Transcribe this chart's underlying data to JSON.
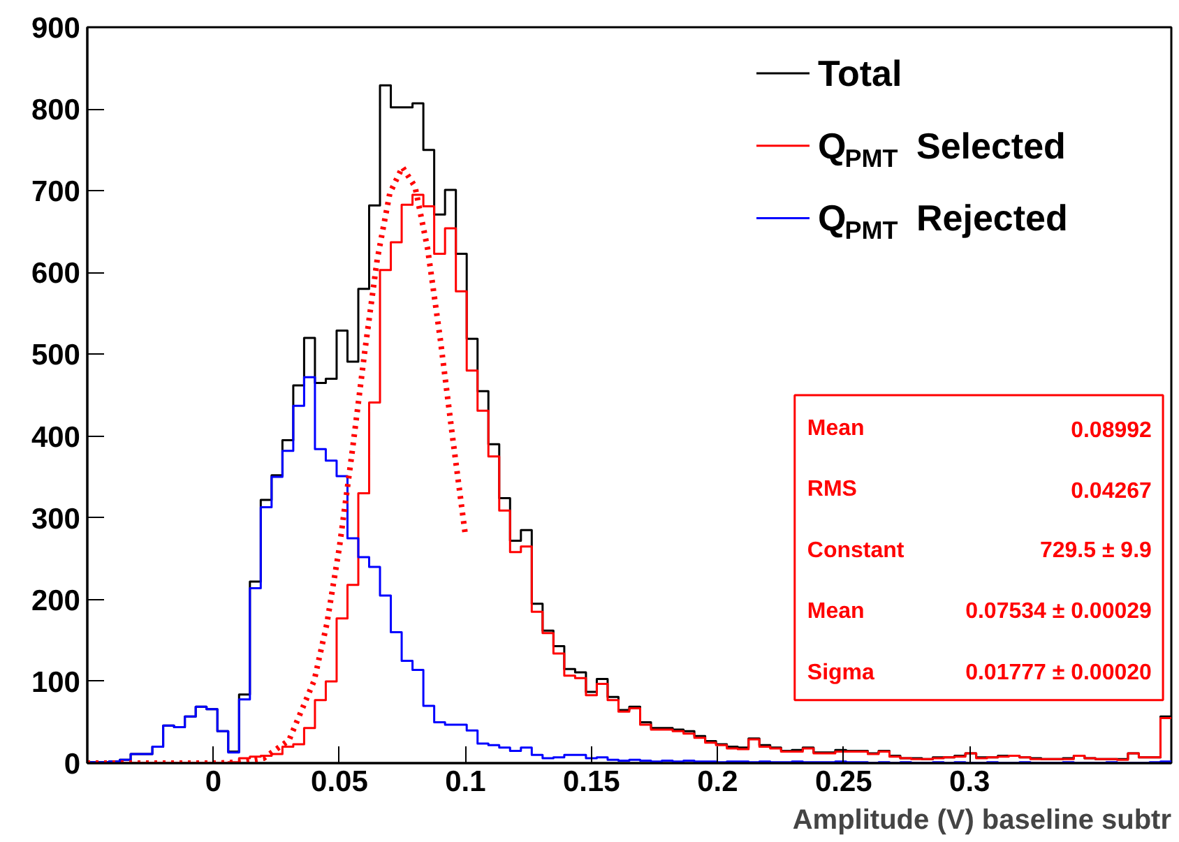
{
  "chart_data": {
    "type": "histogram",
    "xlabel": "Amplitude (V) baseline subtr",
    "bins": [
      -0.05,
      -0.0457,
      -0.0414,
      -0.0371,
      -0.0328,
      -0.0285,
      -0.0242,
      -0.0199,
      -0.0156,
      -0.0113,
      -0.007,
      -0.0027,
      0.0016,
      0.0059,
      0.0102,
      0.0145,
      0.0188,
      0.0231,
      0.0274,
      0.0317,
      0.036,
      0.0403,
      0.0446,
      0.0489,
      0.0532,
      0.0575,
      0.0618,
      0.0661,
      0.0704,
      0.0747,
      0.079,
      0.0833,
      0.0876,
      0.0919,
      0.0962,
      0.1005,
      0.1048,
      0.1091,
      0.1134,
      0.1177,
      0.122,
      0.1263,
      0.1306,
      0.1349,
      0.1392,
      0.1435,
      0.1478,
      0.1521,
      0.1564,
      0.1607,
      0.165,
      0.1693,
      0.1736,
      0.1779,
      0.1822,
      0.1865,
      0.1908,
      0.1951,
      0.1994,
      0.2037,
      0.208,
      0.2123,
      0.2166,
      0.2209,
      0.2252,
      0.2295,
      0.2338,
      0.2381,
      0.2424,
      0.2467,
      0.251,
      0.2553,
      0.2596,
      0.2639,
      0.2682,
      0.2725,
      0.2768,
      0.2811,
      0.2854,
      0.2897,
      0.294,
      0.2983,
      0.3026,
      0.3069,
      0.3112,
      0.3155,
      0.3198,
      0.3241,
      0.3284,
      0.3327,
      0.337,
      0.3413,
      0.3456,
      0.3499,
      0.3542,
      0.3585,
      0.3628,
      0.3671,
      0.3714,
      0.3757,
      0.38
    ],
    "xlim": [
      -0.05,
      0.38
    ],
    "xticks": [
      0,
      0.05,
      0.1,
      0.15,
      0.2,
      0.25,
      0.3
    ],
    "ylim": [
      0,
      900
    ],
    "yticks": [
      0,
      100,
      200,
      300,
      400,
      500,
      600,
      700,
      800,
      900
    ],
    "grid": false,
    "legend": "top right",
    "annotations": [
      "Mean",
      "0.08992",
      "RMS",
      "0.04267",
      "Constant",
      "729.5 ± 9.9",
      "Mean",
      "0.07534 ± 0.00029",
      "Sigma",
      "0.01777 ± 0.00020"
    ],
    "series": [
      {
        "name": "Total",
        "color": "#000000",
        "values": [
          1,
          1,
          2,
          4,
          11,
          11,
          20,
          46,
          44,
          57,
          69,
          66,
          39,
          14,
          84,
          222,
          322,
          352,
          395,
          462,
          520,
          465,
          470,
          529,
          491,
          580,
          682,
          829,
          802,
          802,
          807,
          750,
          671,
          701,
          623,
          519,
          455,
          390,
          324,
          272,
          285,
          195,
          162,
          143,
          115,
          111,
          87,
          103,
          81,
          65,
          69,
          50,
          43,
          43,
          41,
          39,
          33,
          27,
          23,
          20,
          19,
          30,
          22,
          19,
          15,
          16,
          19,
          13,
          13,
          16,
          15,
          15,
          12,
          15,
          9,
          6,
          6,
          5,
          7,
          7,
          9,
          12,
          7,
          7,
          9,
          9,
          7,
          6,
          5,
          5,
          6,
          9,
          6,
          5,
          5,
          5,
          12,
          7,
          7,
          57
        ]
      },
      {
        "name": "Q$_{PMT}$ Selected",
        "color": "#ff0000",
        "values": [
          0,
          0,
          0,
          0,
          0,
          0,
          0,
          0,
          0,
          0,
          0,
          0,
          0,
          1,
          6,
          8,
          9,
          11,
          20,
          23,
          43,
          77,
          100,
          177,
          218,
          330,
          441,
          603,
          637,
          683,
          695,
          681,
          623,
          654,
          577,
          480,
          431,
          375,
          309,
          258,
          265,
          185,
          159,
          134,
          107,
          104,
          83,
          97,
          77,
          63,
          67,
          47,
          41,
          41,
          39,
          36,
          31,
          25,
          22,
          18,
          17,
          29,
          20,
          18,
          14,
          14,
          18,
          12,
          12,
          14,
          14,
          14,
          11,
          14,
          8,
          6,
          5,
          5,
          6,
          7,
          8,
          12,
          6,
          7,
          8,
          9,
          7,
          5,
          5,
          5,
          5,
          9,
          6,
          5,
          5,
          4,
          12,
          7,
          7,
          55
        ]
      },
      {
        "name": "Q$_{PMT}$ Rejected",
        "color": "#0000ff",
        "values": [
          1,
          1,
          2,
          4,
          11,
          11,
          20,
          46,
          44,
          57,
          69,
          66,
          39,
          13,
          78,
          214,
          313,
          350,
          382,
          437,
          472,
          384,
          370,
          351,
          275,
          252,
          240,
          205,
          160,
          125,
          114,
          70,
          50,
          47,
          47,
          40,
          24,
          22,
          19,
          15,
          19,
          10,
          6,
          7,
          10,
          10,
          6,
          7,
          4,
          3,
          4,
          3,
          2,
          3,
          2,
          3,
          2,
          2,
          1,
          2,
          2,
          1,
          2,
          1,
          1,
          2,
          1,
          1,
          1,
          2,
          1,
          1,
          0,
          1,
          0,
          1,
          0,
          0,
          1,
          0,
          1,
          0,
          0,
          1,
          0,
          0,
          1,
          0,
          0,
          0,
          1,
          0,
          0,
          0,
          1,
          0,
          0,
          0,
          1,
          2
        ]
      },
      {
        "type": "line",
        "color": "#ff0000",
        "line_style": "dotted",
        "x": [
          -0.05,
          -0.02,
          0,
          0.01,
          0.02,
          0.03,
          0.04,
          0.045,
          0.05,
          0.055,
          0.06,
          0.065,
          0.07,
          0.075,
          0.08,
          0.085,
          0.09,
          0.095,
          0.1
        ],
        "values": [
          0,
          0,
          0,
          1,
          6,
          28,
          101,
          170,
          264,
          379,
          502,
          616,
          697,
          729,
          705,
          629,
          519,
          396,
          278
        ]
      }
    ]
  }
}
